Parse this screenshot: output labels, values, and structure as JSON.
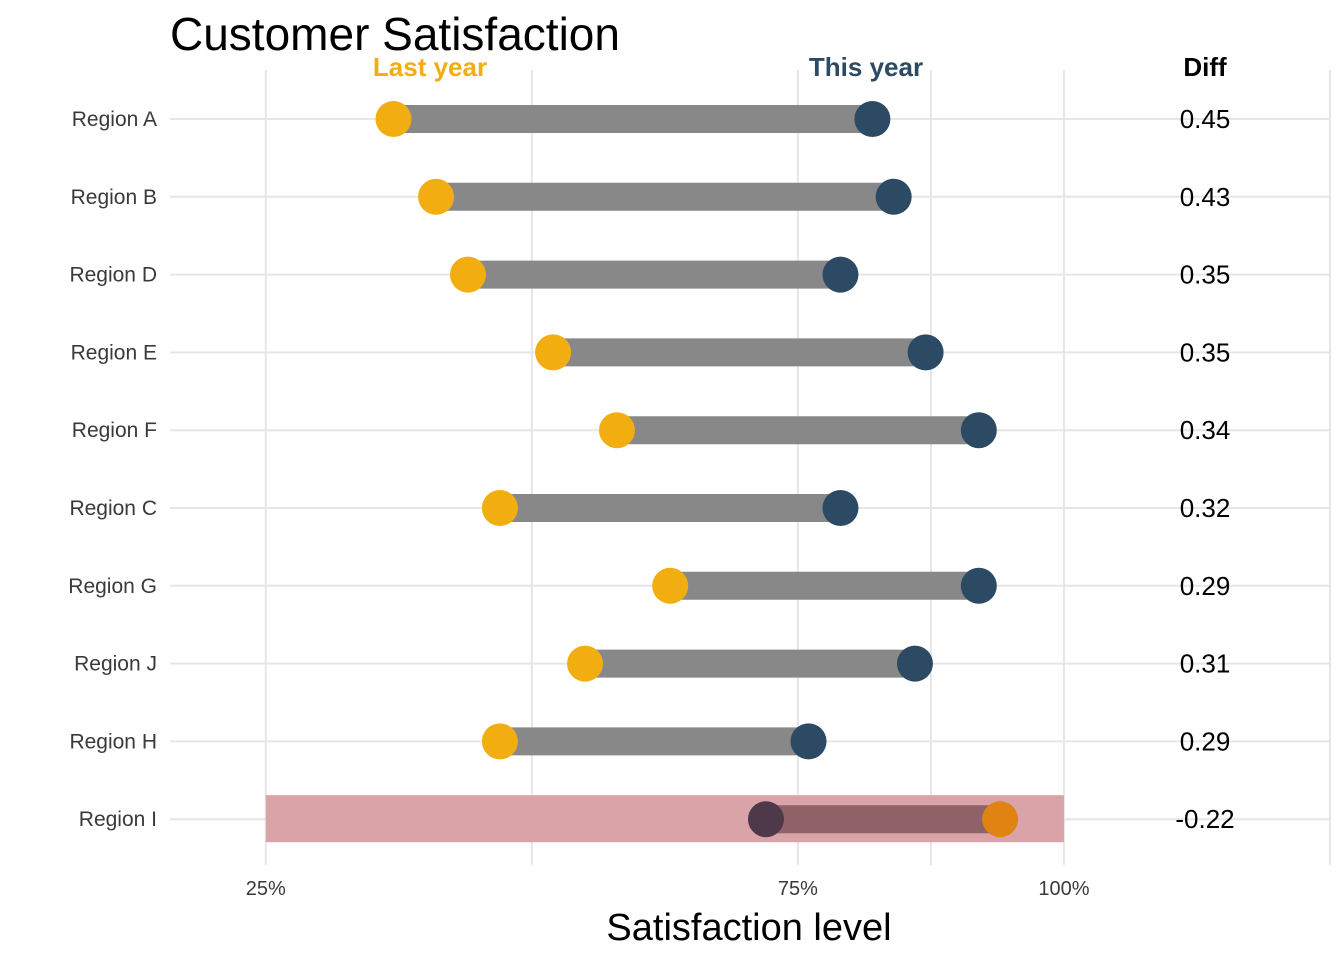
{
  "chart_data": {
    "type": "dumbbell",
    "title": "Customer Satisfaction",
    "xlabel": "Satisfaction level",
    "ylabel": "",
    "xlim": [
      0.16,
      1.25
    ],
    "x_ticks": [
      {
        "value": 0.25,
        "label": "25%"
      },
      {
        "value": 0.75,
        "label": "75%"
      },
      {
        "value": 1.0,
        "label": "100%"
      }
    ],
    "x_grid_values": [
      0.25,
      0.5,
      0.75,
      0.875,
      1.0,
      1.25
    ],
    "column_headers": {
      "last_year": "Last year",
      "this_year": "This year",
      "diff": "Diff"
    },
    "colors": {
      "last_year": "#F2AE10",
      "this_year": "#2C4A63",
      "segment": "#888888",
      "highlight_band": "#D9A3A8",
      "highlight_last_year": "#DF8312",
      "highlight_this_year": "#4E394B",
      "highlight_segment": "#8E6266",
      "grid": "#E6E6E6"
    },
    "highlight": {
      "category": "Region I",
      "x_range": [
        0.25,
        1.0
      ]
    },
    "categories": [
      "Region A",
      "Region B",
      "Region D",
      "Region E",
      "Region F",
      "Region C",
      "Region G",
      "Region J",
      "Region H",
      "Region I"
    ],
    "series": [
      {
        "name": "Last year",
        "values": [
          0.37,
          0.41,
          0.44,
          0.52,
          0.58,
          0.47,
          0.63,
          0.55,
          0.47,
          0.94
        ]
      },
      {
        "name": "This year",
        "values": [
          0.82,
          0.84,
          0.79,
          0.87,
          0.92,
          0.79,
          0.92,
          0.86,
          0.76,
          0.72
        ]
      }
    ],
    "diff": [
      "0.45",
      "0.43",
      "0.35",
      "0.35",
      "0.34",
      "0.32",
      "0.29",
      "0.31",
      "0.29",
      "-0.22"
    ]
  }
}
